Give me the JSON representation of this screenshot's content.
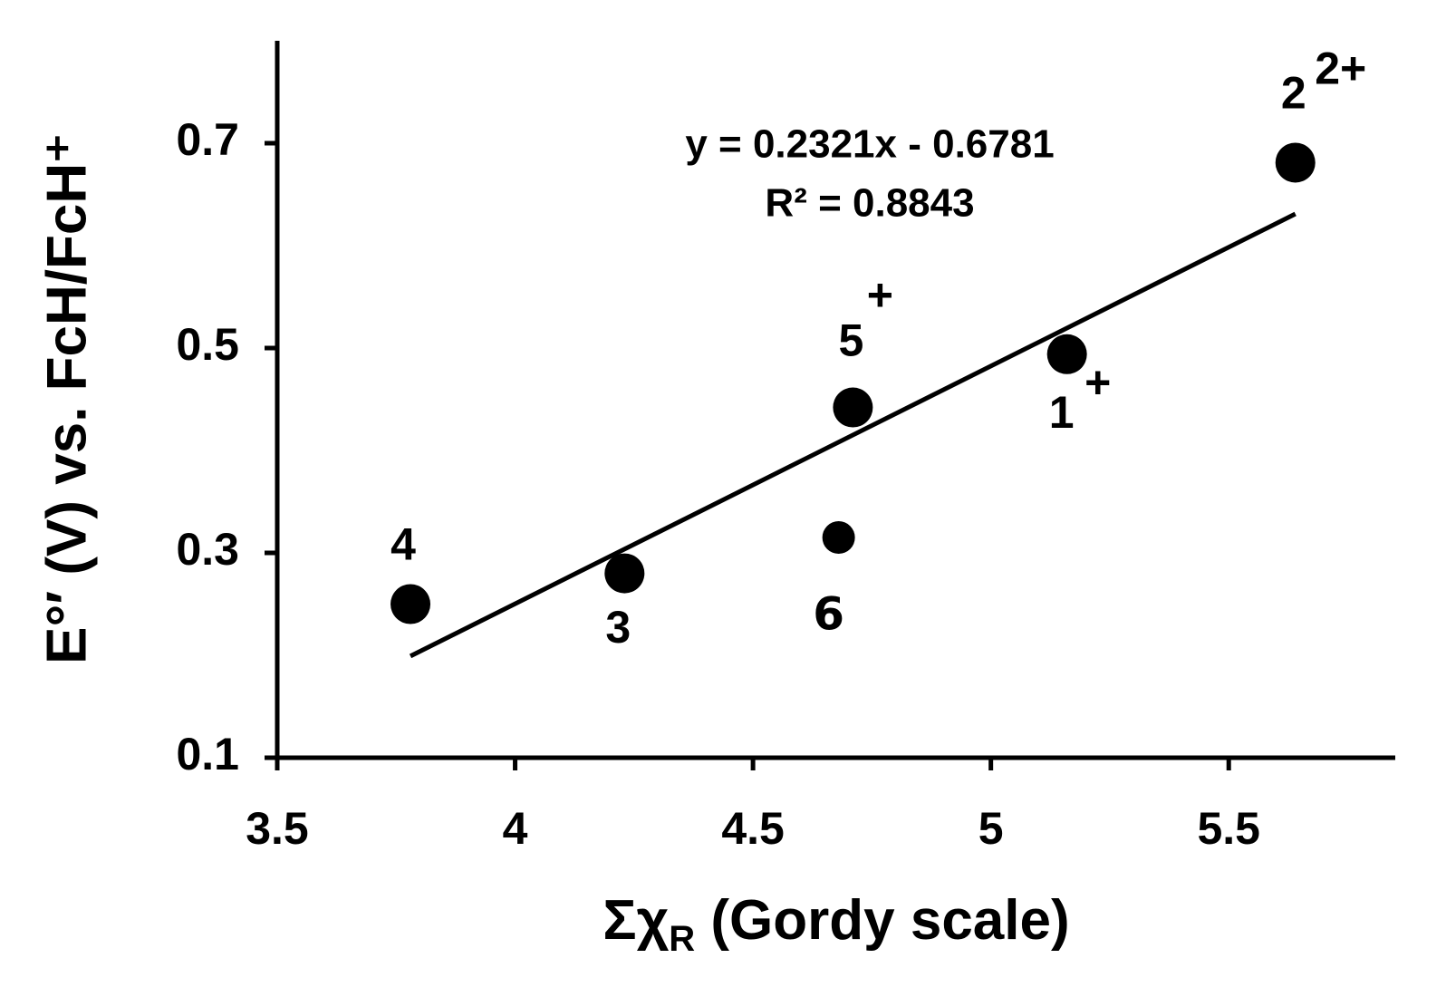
{
  "chart_data": {
    "type": "scatter",
    "x_label": {
      "main": "Σχ",
      "subscript": "R",
      "rest": " (Gordy scale)"
    },
    "y_label": "E°′ (V) vs. FcH/FcH⁺",
    "series": [
      {
        "color": "#000000",
        "x": [
          3.78,
          4.23,
          4.68,
          4.71,
          5.16,
          5.64
        ],
        "values": [
          0.25,
          0.28,
          0.315,
          0.442,
          0.494,
          0.681
        ],
        "point_labels": [
          "4",
          "3",
          "6",
          "5",
          "1",
          "2"
        ],
        "point_charges": [
          null,
          null,
          null,
          "+",
          "+",
          "2+"
        ]
      }
    ],
    "trendline": {
      "equation": "y = 0.2321x - 0.6781",
      "r_squared": "R² = 0.8843",
      "slope": 0.2321,
      "intercept": -0.6781
    },
    "xlim": [
      3.5,
      5.85
    ],
    "xticks": [
      3.5,
      4,
      4.5,
      5,
      5.5
    ],
    "ylim": [
      0.1,
      0.8
    ],
    "yticks": [
      0.1,
      0.3,
      0.5,
      0.7
    ],
    "grid": false
  }
}
